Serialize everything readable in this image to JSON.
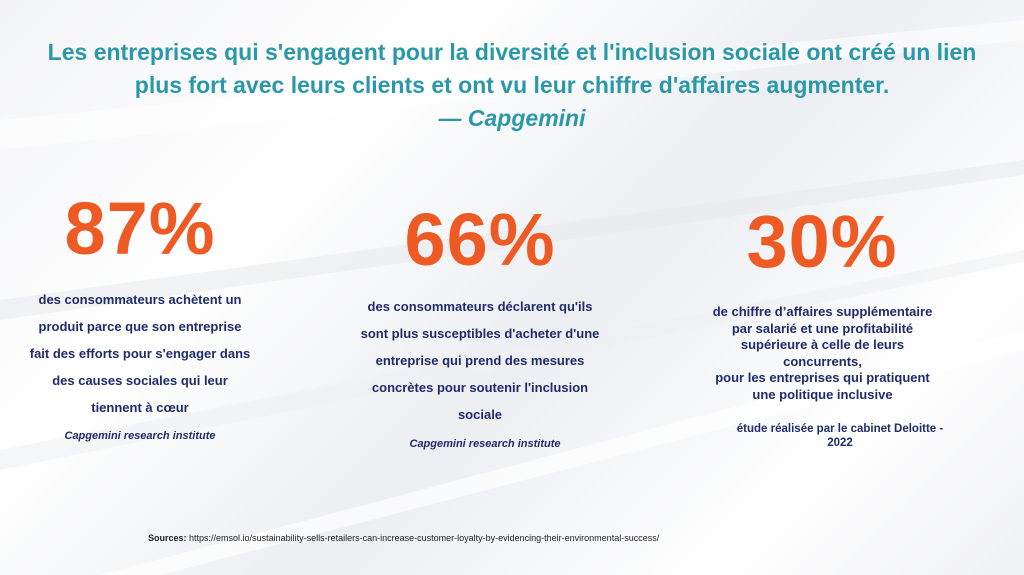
{
  "quote": {
    "line1": "Les entreprises qui s'engagent pour la diversité et l'inclusion sociale ont créé un lien",
    "line2": "plus fort avec leurs clients et ont vu leur chiffre d'affaires augmenter.",
    "author": "— Capgemini"
  },
  "stats": [
    {
      "value": "87%",
      "lines": [
        "des consommateurs achètent un",
        "produit parce que son entreprise",
        "fait des efforts pour s'engager dans",
        "des causes sociales qui leur",
        "tiennent à cœur"
      ],
      "source": "Capgemini research institute"
    },
    {
      "value": "66%",
      "lines": [
        "des consommateurs déclarent qu'ils",
        "sont plus susceptibles d'acheter d'une",
        "entreprise qui prend des mesures",
        "concrètes pour soutenir l'inclusion",
        "sociale"
      ],
      "source": "Capgemini research institute"
    },
    {
      "value": "30%",
      "lines": [
        "de chiffre d’affaires supplémentaire",
        "par salarié et une profitabilité",
        "supérieure à celle de leurs",
        "concurrents,",
        "pour les entreprises qui pratiquent",
        "une politique inclusive"
      ],
      "source_lines": [
        "étude réalisée par le cabinet Deloitte -",
        "2022"
      ]
    }
  ],
  "sources": {
    "label": "Sources:",
    "url": "https://emsol.io/sustainability-sells-retailers-can-increase-customer-loyalty-by-evidencing-their-environmental-success/"
  }
}
